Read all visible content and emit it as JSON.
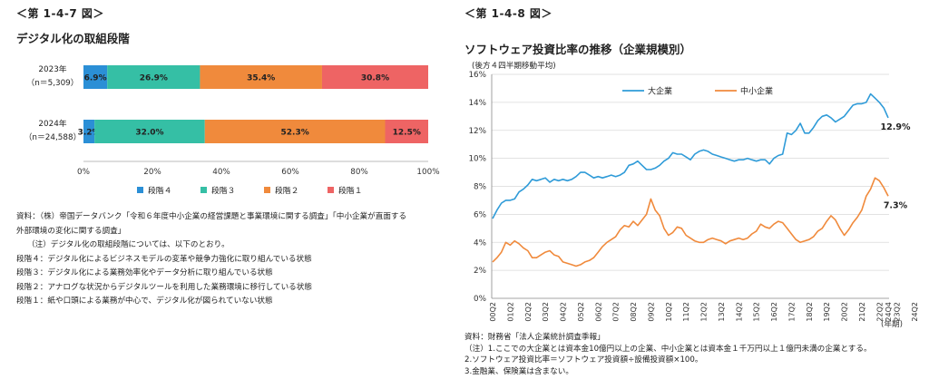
{
  "left": {
    "fig_label": "＜第 1-4-7 図＞",
    "title": "デジタル化の取組段階",
    "notes": [
      "資料：（株）帝国データバンク「令和６年度中小企業の経営課題と事業環境に関する調査」「中小企業が直面する",
      "外部環境の変化に関する調査」",
      "（注）デジタル化の取組段階については、以下のとおり。",
      "段階４：デジタル化によるビジネスモデルの変革や競争力強化に取り組んでいる状態",
      "段階３：デジタル化による業務効率化やデータ分析に取り組んでいる状態",
      "段階２：アナログな状況からデジタルツールを利用した業務環境に移行している状態",
      "段階１：紙や口頭による業務が中心で、デジタル化が図られていない状態"
    ]
  },
  "right": {
    "fig_label": "＜第 1-4-8 図＞",
    "title": "ソフトウェア投資比率の推移（企業規模別）",
    "subtitle": "(後方４四半期移動平均)",
    "notes": [
      "資料：財務省「法人企業統計調査季報」",
      "（注）1.ここでの大企業とは資本金10億円以上の企業、中小企業とは資本金１千万円以上１億円未満の企業とする。",
      "2.ソフトウェア投資比率＝ソフトウェア投資額÷設備投資額×100。",
      "3.金融業、保険業は含まない。"
    ]
  },
  "chart_data": [
    {
      "type": "bar",
      "stacked": true,
      "orientation": "horizontal",
      "categories": [
        [
          "2023年",
          "（n＝5,309）"
        ],
        [
          "2024年",
          "（n＝24,588）"
        ]
      ],
      "series": [
        {
          "name": "段階４",
          "color": "#2b8fd6",
          "values": [
            6.9,
            3.2
          ]
        },
        {
          "name": "段階３",
          "color": "#35bfa5",
          "values": [
            26.9,
            32.0
          ]
        },
        {
          "name": "段階２",
          "color": "#f08a3c",
          "values": [
            35.4,
            52.3
          ]
        },
        {
          "name": "段階１",
          "color": "#ee6464",
          "values": [
            30.8,
            12.5
          ]
        }
      ],
      "data_labels": [
        [
          "6.9%",
          "26.9%",
          "35.4%",
          "30.8%"
        ],
        [
          "3.2%",
          "32.0%",
          "52.3%",
          "12.5%"
        ]
      ],
      "xlim": [
        0,
        100
      ],
      "xticks": [
        "0%",
        "20%",
        "40%",
        "60%",
        "80%",
        "100%"
      ],
      "grid": false,
      "legend_position": "bottom"
    },
    {
      "type": "line",
      "x_tick_labels": [
        "00Q2",
        "01Q2",
        "02Q2",
        "03Q2",
        "04Q2",
        "05Q2",
        "06Q2",
        "07Q2",
        "08Q2",
        "09Q2",
        "10Q2",
        "11Q2",
        "12Q2",
        "13Q2",
        "14Q2",
        "15Q2",
        "16Q2",
        "17Q2",
        "18Q2",
        "19Q2",
        "20Q2",
        "21Q2",
        "22Q2",
        "23Q2",
        "24Q2",
        "24Q4"
      ],
      "xlabel": "(年期)",
      "ylim": [
        0,
        16
      ],
      "yticks": [
        "0%",
        "2%",
        "4%",
        "6%",
        "8%",
        "10%",
        "12%",
        "14%",
        "16%"
      ],
      "grid": true,
      "legend_position": "top",
      "series": [
        {
          "name": "大企業",
          "color": "#2f9bd8",
          "end_label": "12.9%",
          "values": [
            5.7,
            6.3,
            6.8,
            7.0,
            7.0,
            7.1,
            7.6,
            7.8,
            8.1,
            8.5,
            8.4,
            8.5,
            8.6,
            8.3,
            8.5,
            8.4,
            8.5,
            8.4,
            8.5,
            8.7,
            9.0,
            9.0,
            8.8,
            8.6,
            8.7,
            8.6,
            8.7,
            8.8,
            8.7,
            8.8,
            9.0,
            9.5,
            9.6,
            9.8,
            9.5,
            9.2,
            9.2,
            9.3,
            9.5,
            9.8,
            10.0,
            10.4,
            10.3,
            10.3,
            10.1,
            9.9,
            10.3,
            10.5,
            10.6,
            10.5,
            10.3,
            10.2,
            10.1,
            10.0,
            9.9,
            9.8,
            9.9,
            9.9,
            10.0,
            9.9,
            9.8,
            9.9,
            9.9,
            9.6,
            10.0,
            10.2,
            10.3,
            11.8,
            11.7,
            12.0,
            12.5,
            11.8,
            11.8,
            12.2,
            12.7,
            13.0,
            13.1,
            12.9,
            12.6,
            12.8,
            13.0,
            13.4,
            13.8,
            13.9,
            13.9,
            14.0,
            14.6,
            14.3,
            14.0,
            13.6,
            12.9
          ]
        },
        {
          "name": "中小企業",
          "color": "#f08a3c",
          "end_label": "7.3%",
          "values": [
            2.6,
            2.9,
            3.3,
            4.0,
            3.8,
            4.1,
            3.9,
            3.6,
            3.4,
            2.9,
            2.9,
            3.1,
            3.3,
            3.4,
            3.1,
            3.0,
            2.6,
            2.5,
            2.4,
            2.3,
            2.4,
            2.6,
            2.7,
            2.9,
            3.3,
            3.7,
            4.0,
            4.2,
            4.4,
            4.9,
            5.2,
            5.1,
            5.5,
            5.2,
            5.6,
            6.0,
            7.1,
            6.3,
            5.9,
            5.0,
            4.5,
            4.7,
            5.1,
            5.0,
            4.5,
            4.3,
            4.1,
            4.0,
            4.0,
            4.2,
            4.3,
            4.2,
            4.1,
            3.9,
            4.1,
            4.2,
            4.3,
            4.2,
            4.3,
            4.6,
            4.8,
            5.3,
            5.1,
            5.0,
            5.3,
            5.5,
            5.4,
            5.0,
            4.6,
            4.2,
            4.0,
            4.1,
            4.2,
            4.4,
            4.8,
            5.0,
            5.5,
            5.9,
            5.6,
            5.0,
            4.5,
            4.9,
            5.4,
            5.8,
            6.3,
            7.3,
            7.8,
            8.6,
            8.4,
            7.9,
            7.3
          ]
        }
      ]
    }
  ]
}
